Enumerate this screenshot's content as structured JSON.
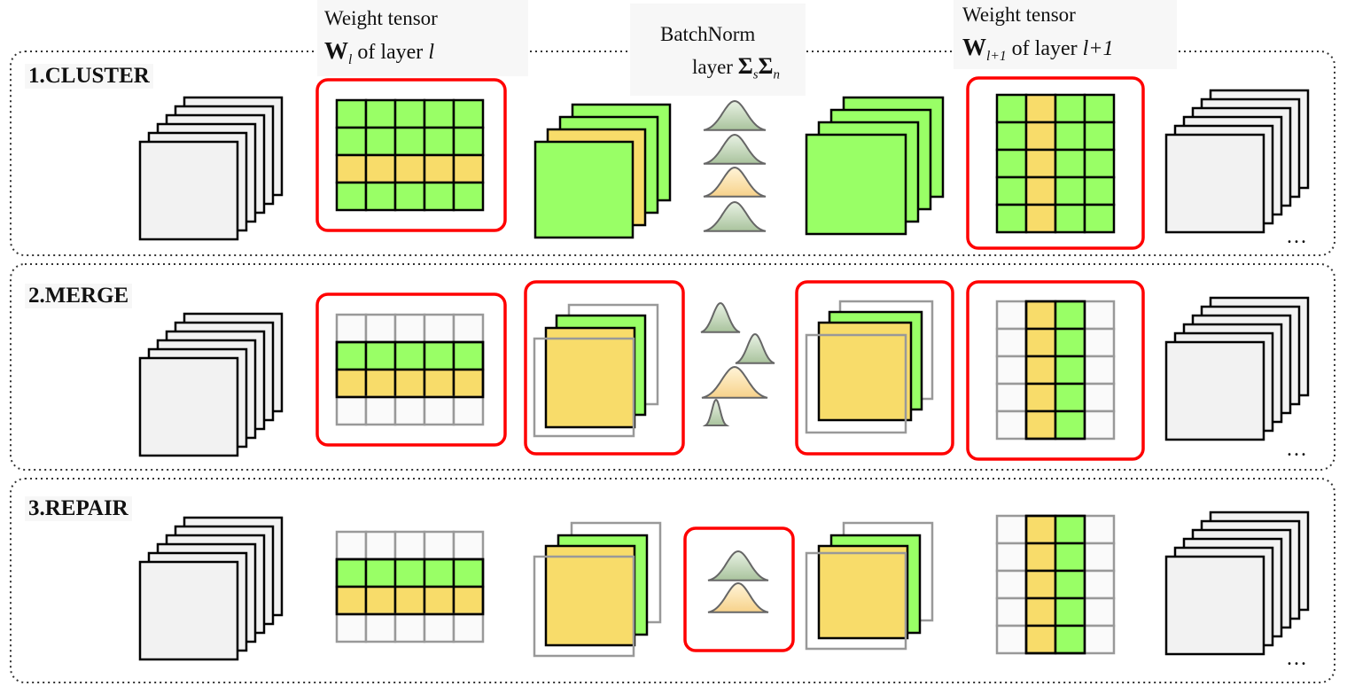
{
  "rows": [
    {
      "title": "1.CLUSTER"
    },
    {
      "title": "2.MERGE"
    },
    {
      "title": "3.REPAIR"
    }
  ],
  "labels": {
    "weight_l": {
      "line1": "Weight tensor",
      "symbol": "W",
      "subscript": "l",
      "text": " of layer ",
      "var": "l"
    },
    "batchnorm": {
      "line1": "BatchNorm",
      "text": "layer ",
      "sigma": "Σ",
      "sub_s": "s",
      "sub_n": "n"
    },
    "weight_l1": {
      "line1": "Weight tensor",
      "symbol": "W",
      "subscript": "l+1",
      "text": " of layer ",
      "var": "l+1"
    }
  },
  "ellipsis": "...",
  "colors": {
    "green": "#99ff66",
    "yellow": "#f8dc6a",
    "sheet": "#f2f2f2",
    "highlight": "#ff0000",
    "border": "#222222",
    "faded": "#999999",
    "bell_green": "#c9dcc0",
    "bell_yellow": "#ffe6b0"
  }
}
